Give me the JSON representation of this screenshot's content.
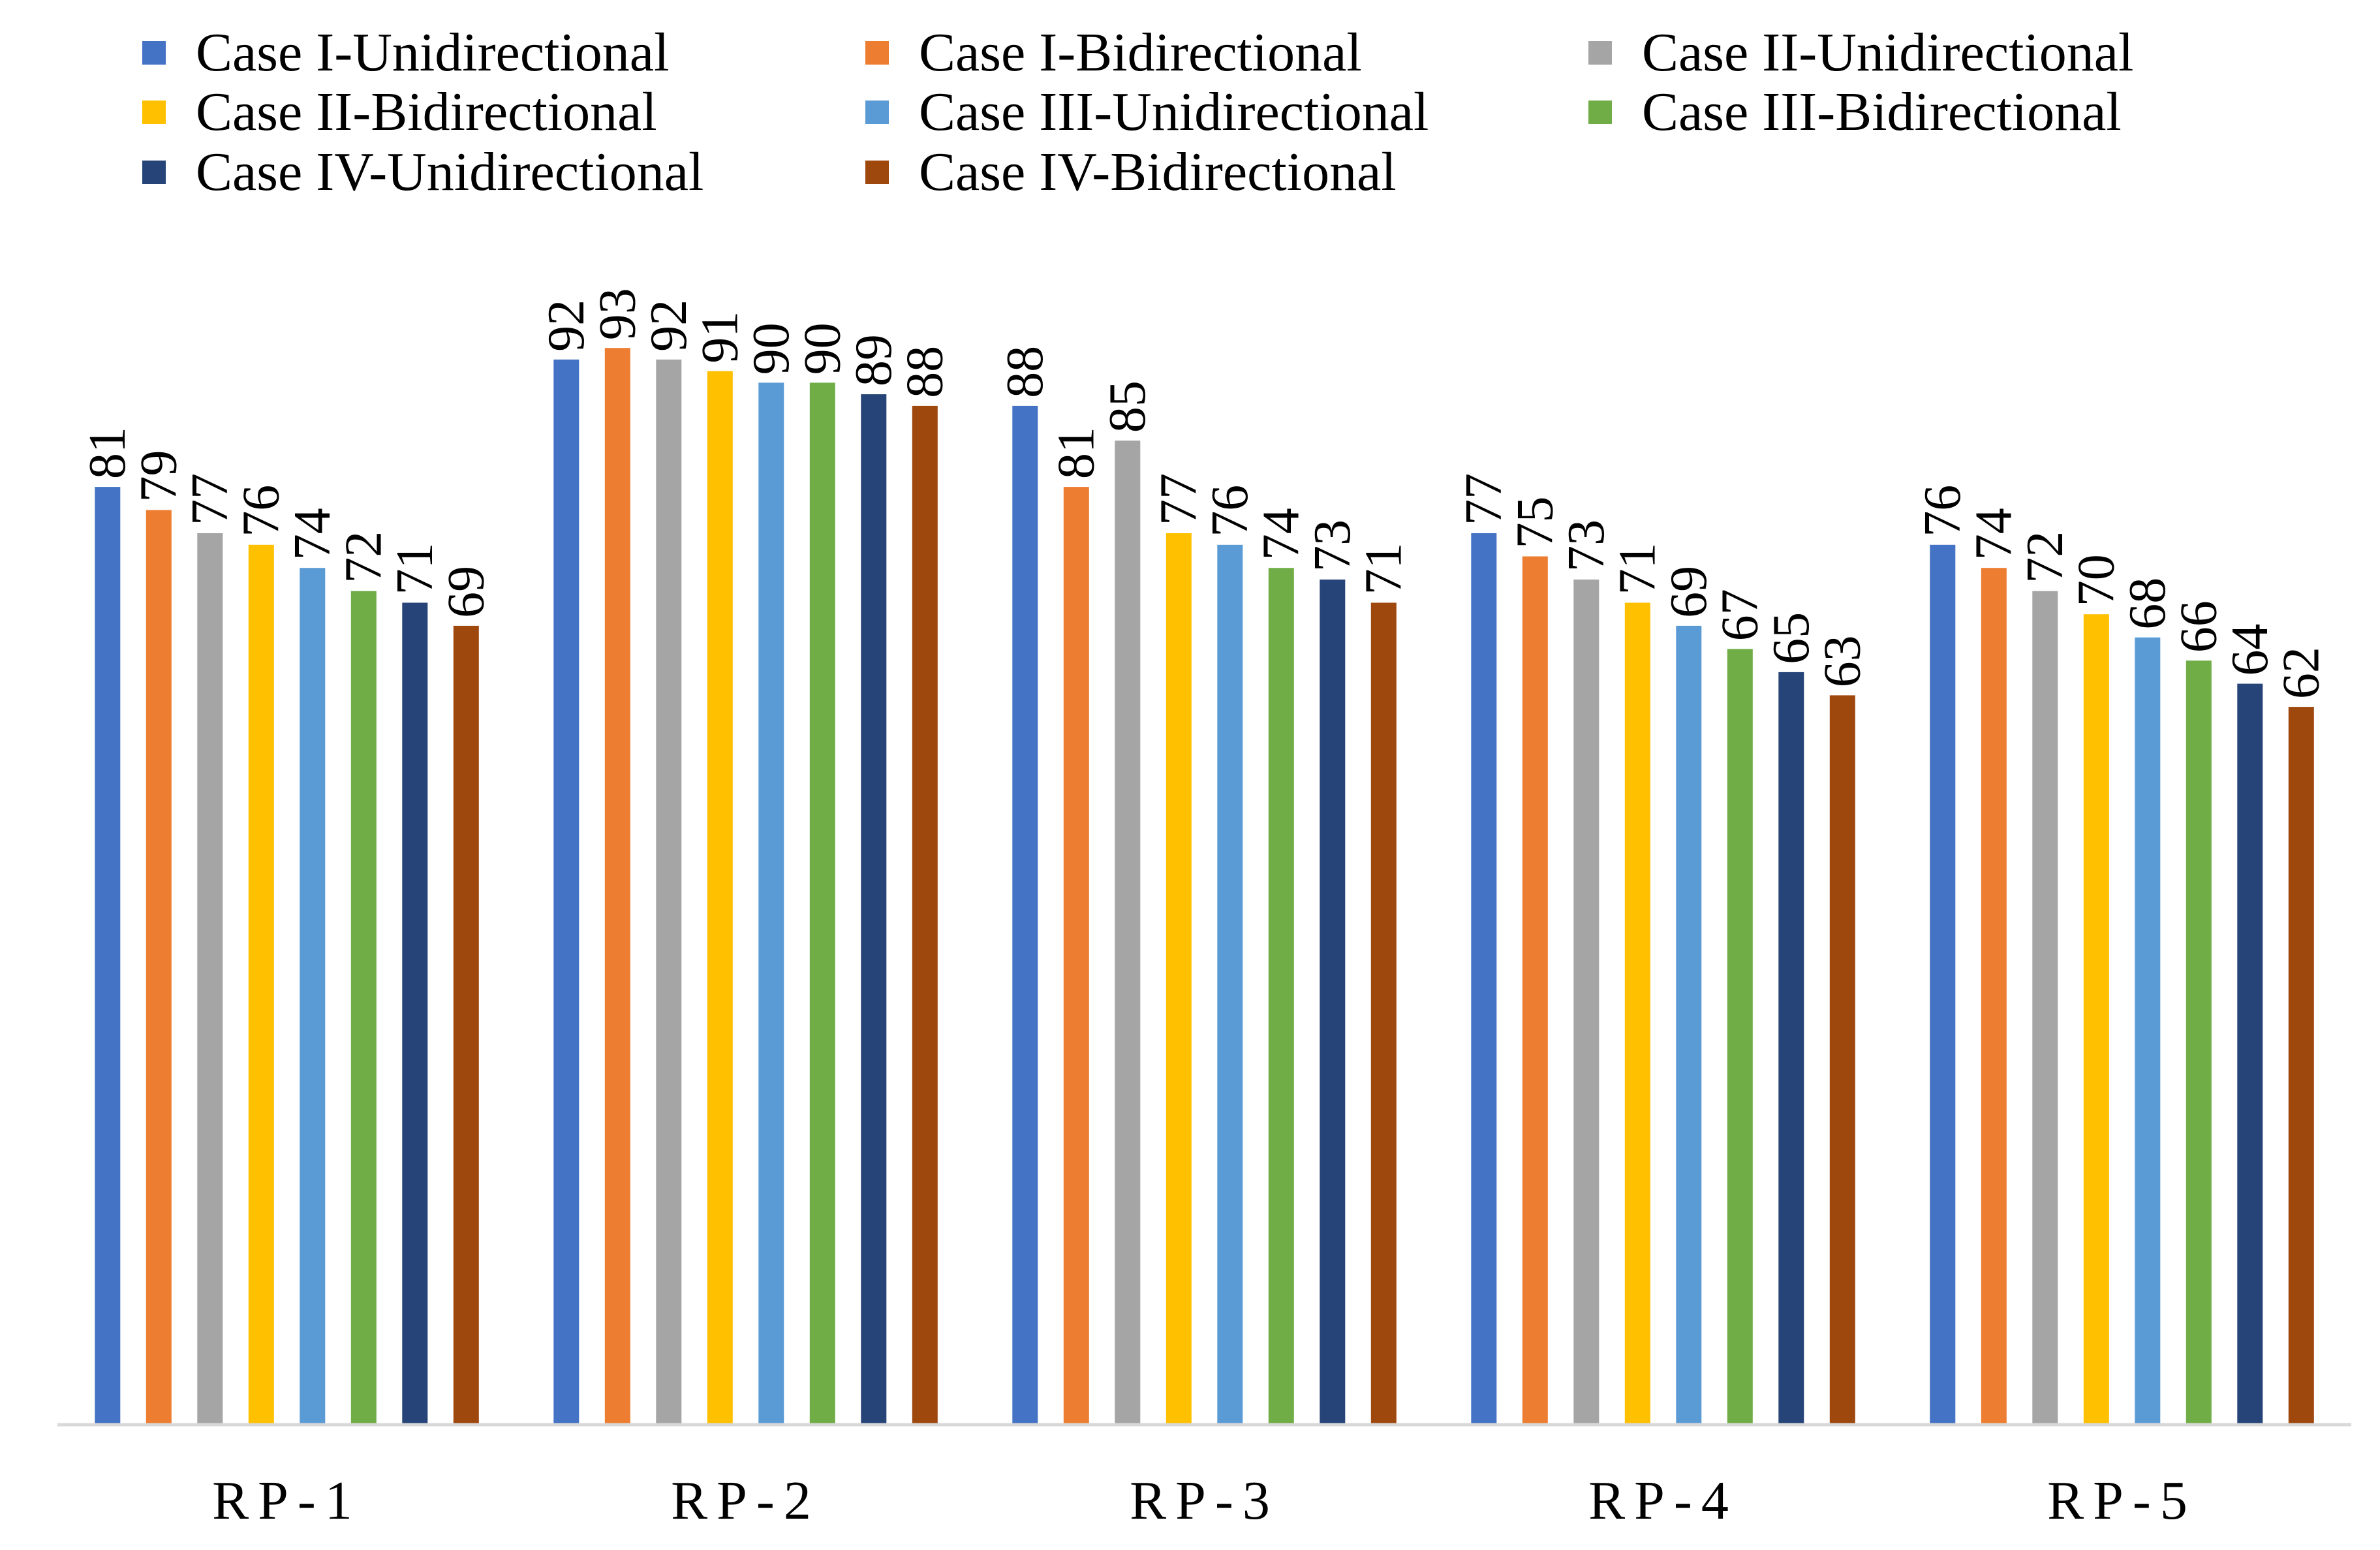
{
  "chart_data": {
    "type": "bar",
    "title": "",
    "xlabel": "",
    "ylabel": "",
    "ylim": [
      0,
      100
    ],
    "grid": false,
    "legend_position": "top",
    "categories": [
      "RP-1",
      "RP-2",
      "RP-3",
      "RP-4",
      "RP-5"
    ],
    "series": [
      {
        "name": "Case I-Unidirectional",
        "color": "#4472C4",
        "values": [
          81,
          92,
          88,
          77,
          76
        ]
      },
      {
        "name": "Case I-Bidirectional",
        "color": "#ED7D31",
        "values": [
          79,
          93,
          81,
          75,
          74
        ]
      },
      {
        "name": "Case II-Unidirectional",
        "color": "#A5A5A5",
        "values": [
          77,
          92,
          85,
          73,
          72
        ]
      },
      {
        "name": "Case II-Bidirectional",
        "color": "#FFC000",
        "values": [
          76,
          91,
          77,
          71,
          70
        ]
      },
      {
        "name": "Case III-Unidirectional",
        "color": "#5B9BD5",
        "values": [
          74,
          90,
          76,
          69,
          68
        ]
      },
      {
        "name": "Case III-Bidirectional",
        "color": "#70AD47",
        "values": [
          72,
          90,
          74,
          67,
          66
        ]
      },
      {
        "name": "Case IV-Unidirectional",
        "color": "#264478",
        "values": [
          71,
          89,
          73,
          65,
          64
        ]
      },
      {
        "name": "Case IV-Bidirectional",
        "color": "#9E480E",
        "values": [
          69,
          88,
          71,
          63,
          62
        ]
      }
    ]
  }
}
